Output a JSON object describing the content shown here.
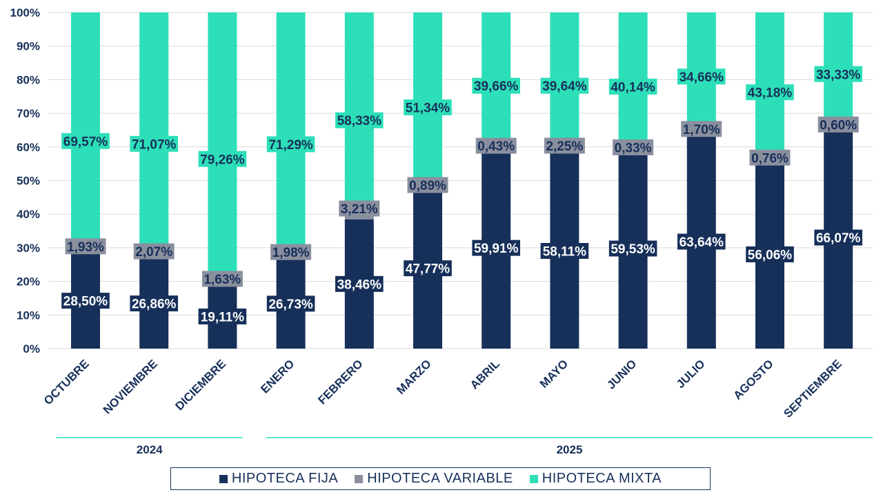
{
  "chart_data": {
    "type": "bar",
    "stacked": true,
    "percent_stacked": true,
    "categories": [
      "OCTUBRE",
      "NOVIEMBRE",
      "DICIEMBRE",
      "ENERO",
      "FEBRERO",
      "MARZO",
      "ABRIL",
      "MAYO",
      "JUNIO",
      "JULIO",
      "AGOSTO",
      "SEPTIEMBRE"
    ],
    "year_groups": [
      {
        "label": "2024",
        "from": 0,
        "to": 2
      },
      {
        "label": "2025",
        "from": 3,
        "to": 11
      }
    ],
    "series": [
      {
        "name": "HIPOTECA FIJA",
        "color": "#17305a",
        "values": [
          28.5,
          26.86,
          19.11,
          26.73,
          38.46,
          47.77,
          59.91,
          58.11,
          59.53,
          63.64,
          56.06,
          66.07
        ],
        "labels": [
          "28,50%",
          "26,86%",
          "19,11%",
          "26,73%",
          "38,46%",
          "47,77%",
          "59,91%",
          "58,11%",
          "59,53%",
          "63,64%",
          "56,06%",
          "66,07%"
        ]
      },
      {
        "name": "HIPOTECA VARIABLE",
        "color": "#8a8f9e",
        "values": [
          1.93,
          2.07,
          1.63,
          1.98,
          3.21,
          0.89,
          0.43,
          2.25,
          0.33,
          1.7,
          0.76,
          0.6
        ],
        "labels": [
          "1,93%",
          "2,07%",
          "1,63%",
          "1,98%",
          "3,21%",
          "0,89%",
          "0,43%",
          "2,25%",
          "0,33%",
          "1,70%",
          "0,76%",
          "0,60%"
        ]
      },
      {
        "name": "HIPOTECA MIXTA",
        "color": "#2ddfb8",
        "values": [
          69.57,
          71.07,
          79.26,
          71.29,
          58.33,
          51.34,
          39.66,
          39.64,
          40.14,
          34.66,
          43.18,
          33.33
        ],
        "labels": [
          "69,57%",
          "71,07%",
          "79,26%",
          "71,29%",
          "58,33%",
          "51,34%",
          "39,66%",
          "39,64%",
          "40,14%",
          "34,66%",
          "43,18%",
          "33,33%"
        ]
      }
    ],
    "y_ticks": [
      "0%",
      "10%",
      "20%",
      "30%",
      "40%",
      "50%",
      "60%",
      "70%",
      "80%",
      "90%",
      "100%"
    ],
    "ylim": [
      0,
      100
    ],
    "grid": true,
    "legend_position": "bottom",
    "title": "",
    "xlabel": "",
    "ylabel": ""
  }
}
